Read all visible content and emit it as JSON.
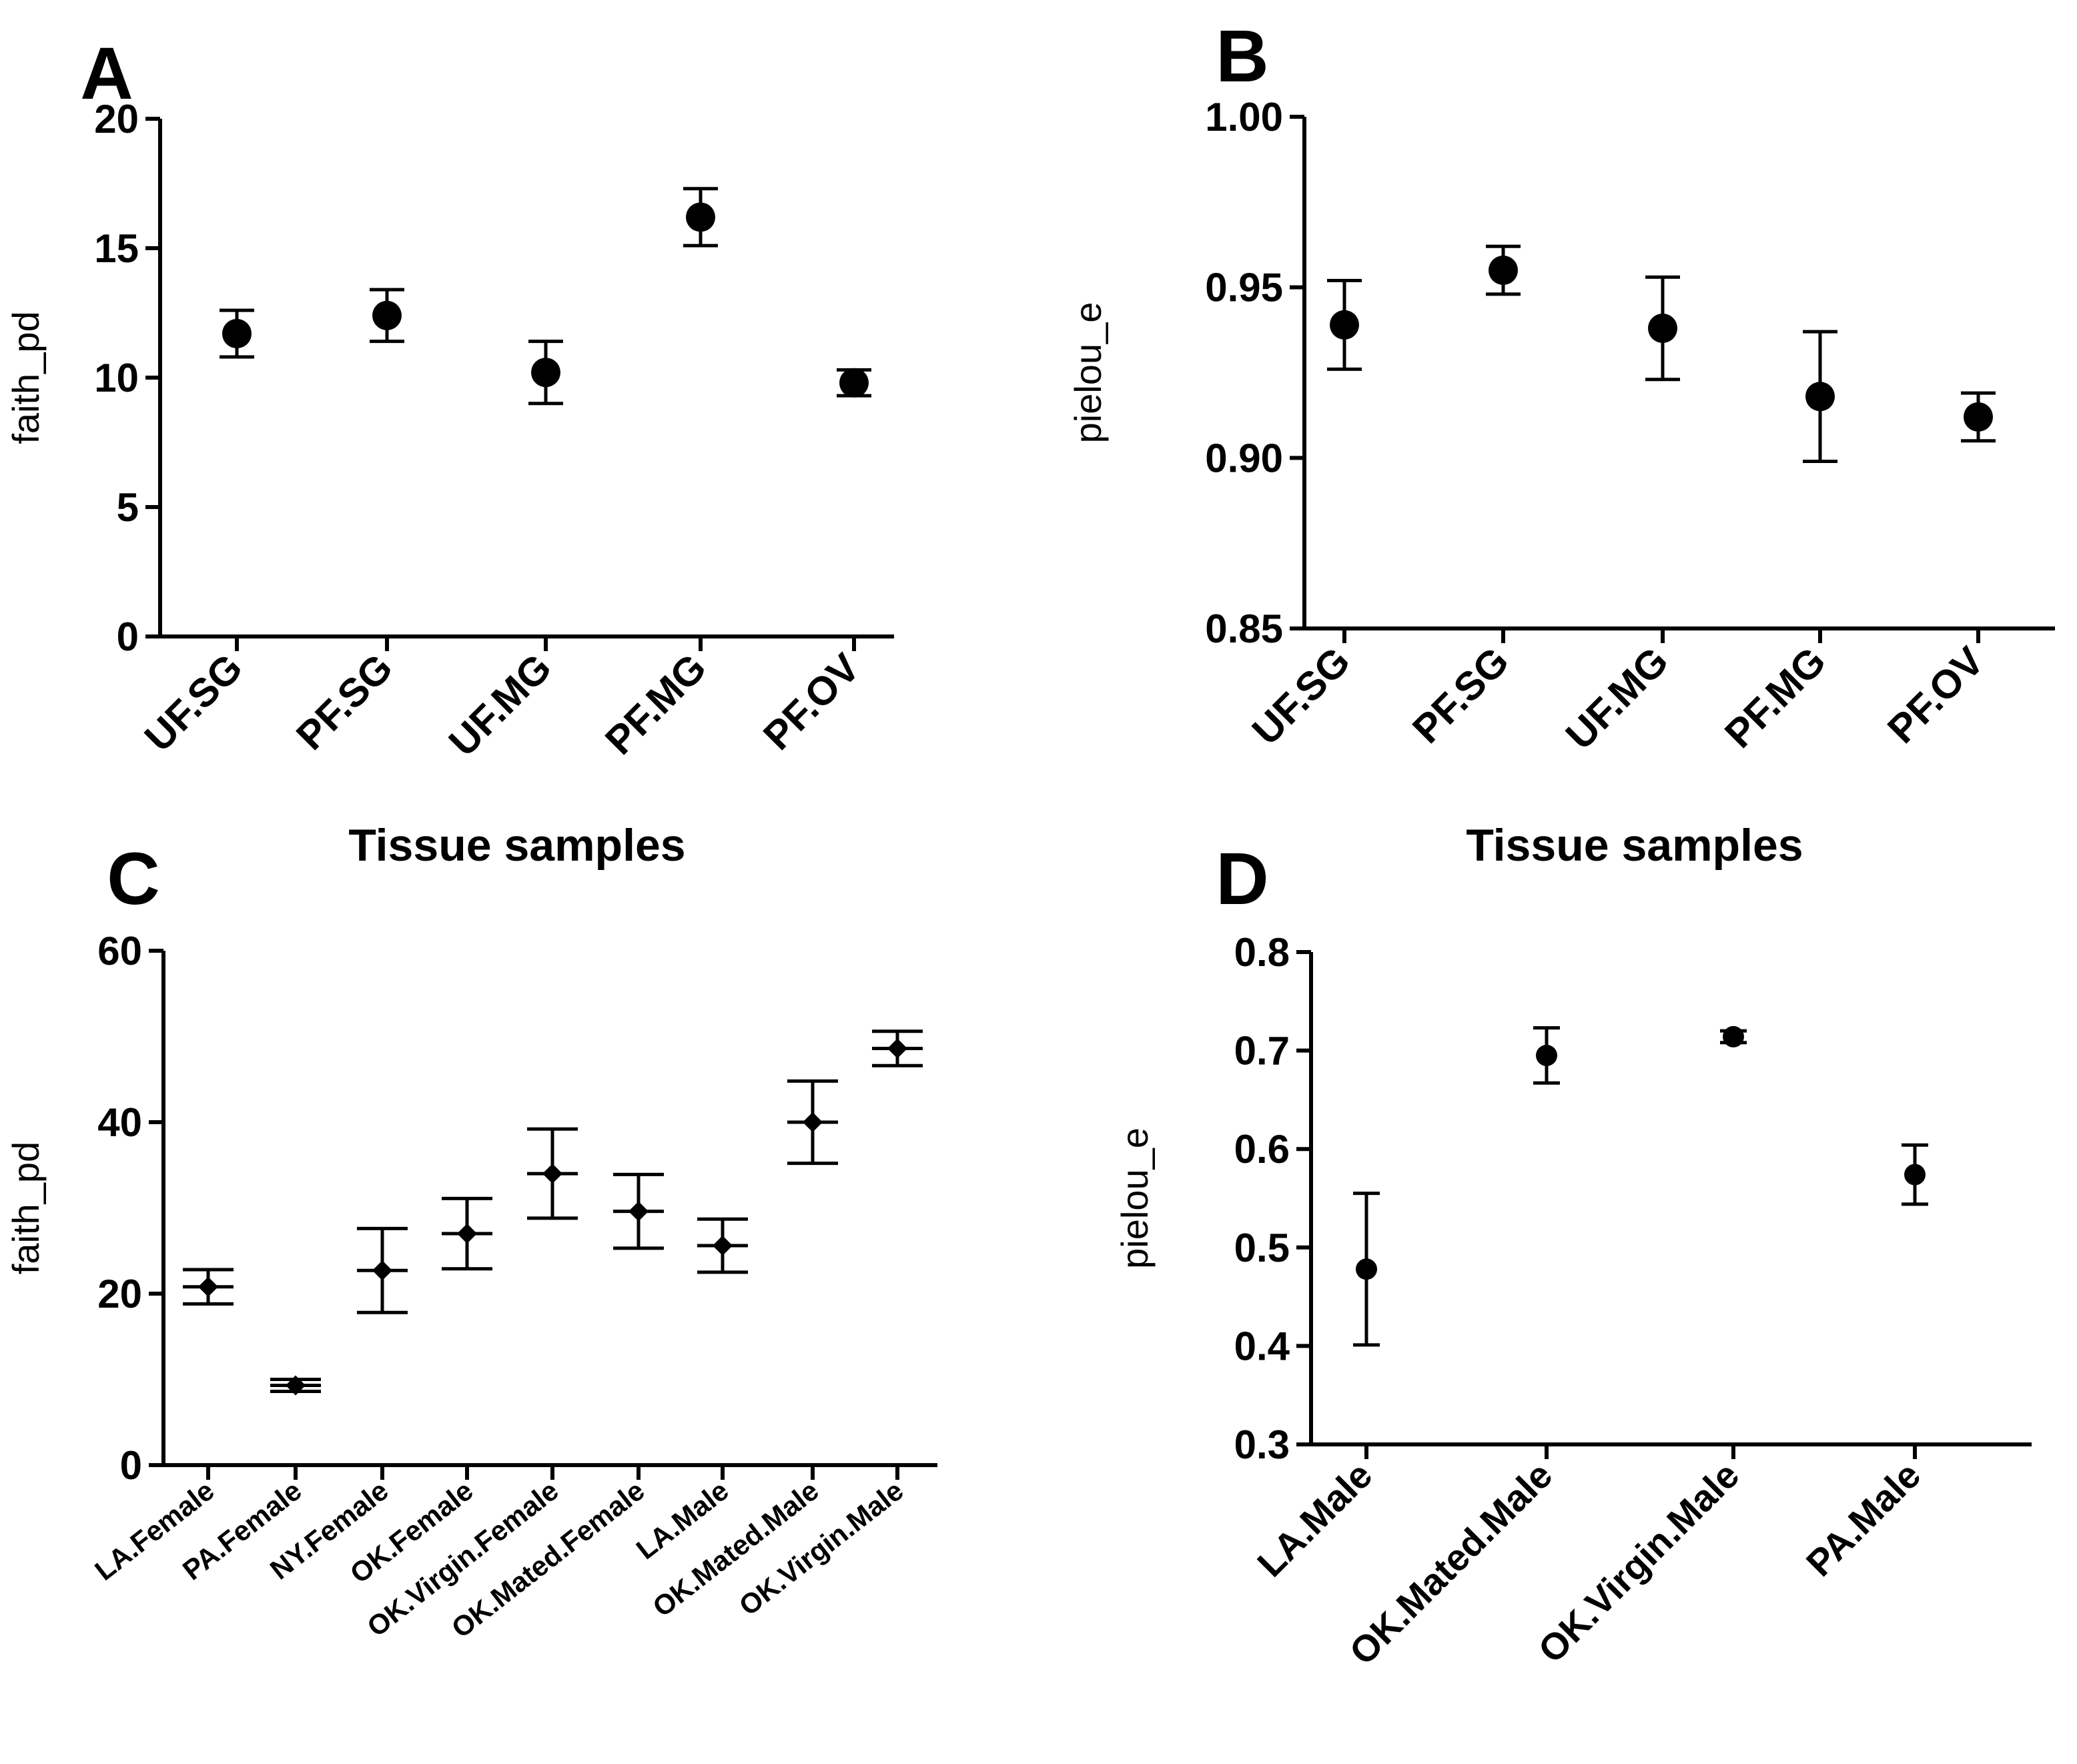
{
  "chart_data": [
    {
      "type": "scatter",
      "panel": "A",
      "ylabel": "faith_pd",
      "xlabel": "Tissue samples",
      "ylim": [
        0,
        20
      ],
      "yticks": [
        0,
        5,
        10,
        15,
        20
      ],
      "categories": [
        "UF.SG",
        "PF.SG",
        "UF.MG",
        "PF.MG",
        "PF.OV"
      ],
      "values": [
        11.7,
        12.4,
        10.2,
        16.2,
        9.8
      ],
      "errors": [
        0.9,
        1.0,
        1.2,
        1.1,
        0.5
      ]
    },
    {
      "type": "scatter",
      "panel": "B",
      "ylabel": "pielou_e",
      "xlabel": "Tissue samples",
      "ylim": [
        0.85,
        1.0
      ],
      "yticks": [
        "0.85",
        "0.90",
        "0.95",
        "1.00"
      ],
      "categories": [
        "UF.SG",
        "PF.SG",
        "UF.MG",
        "PF.MG",
        "PF.OV"
      ],
      "values": [
        0.939,
        0.955,
        0.938,
        0.918,
        0.912
      ],
      "errors": [
        0.013,
        0.007,
        0.015,
        0.019,
        0.007
      ]
    },
    {
      "type": "scatter",
      "panel": "C",
      "ylabel": "faith_pd",
      "xlabel": "",
      "ylim": [
        0,
        60
      ],
      "yticks": [
        0,
        20,
        40,
        60
      ],
      "categories": [
        "LA.Female",
        "PA.Female",
        "NY.Female",
        "OK.Female",
        "OK.Virgin.Female",
        "OK.Mated.Female",
        "LA.Male",
        "OK.Mated.Male",
        "OK.Virgin.Male"
      ],
      "values": [
        20.8,
        9.3,
        22.7,
        27.0,
        34.0,
        29.6,
        25.6,
        40.0,
        48.6
      ],
      "errors": [
        2.0,
        0.7,
        4.9,
        4.1,
        5.2,
        4.3,
        3.1,
        4.8,
        2.0
      ]
    },
    {
      "type": "scatter",
      "panel": "D",
      "ylabel": "pielou_e",
      "xlabel": "",
      "ylim": [
        0.3,
        0.8
      ],
      "yticks": [
        "0.3",
        "0.4",
        "0.5",
        "0.6",
        "0.7",
        "0.8"
      ],
      "categories": [
        "LA.Male",
        "OK.Mated.Male",
        "OK.Virgin.Male",
        "PA.Male"
      ],
      "values": [
        0.478,
        0.695,
        0.714,
        0.574
      ],
      "errors": [
        0.077,
        0.028,
        0.006,
        0.03
      ]
    }
  ]
}
